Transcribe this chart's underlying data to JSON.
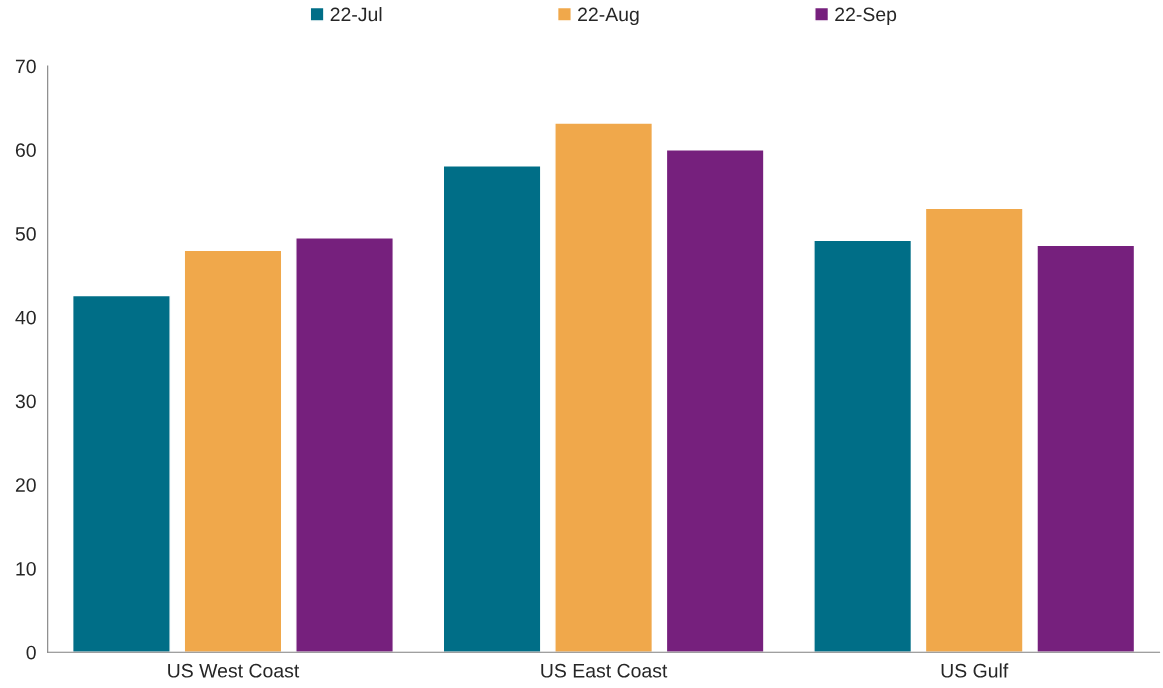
{
  "chart_data": {
    "type": "bar",
    "categories": [
      "US West Coast",
      "US East Coast",
      "US Gulf"
    ],
    "series": [
      {
        "name": "22-Jul",
        "color": "#006e87",
        "values": [
          42.6,
          58.1,
          49.2
        ]
      },
      {
        "name": "22-Aug",
        "color": "#f0a84b",
        "values": [
          48.0,
          63.2,
          53.0
        ]
      },
      {
        "name": "22-Sep",
        "color": "#76207d",
        "values": [
          49.5,
          60.0,
          48.6
        ]
      }
    ],
    "ylim": [
      0,
      70
    ],
    "yticks": [
      0,
      10,
      20,
      30,
      40,
      50,
      60,
      70
    ],
    "grid": false,
    "legend": "top"
  }
}
